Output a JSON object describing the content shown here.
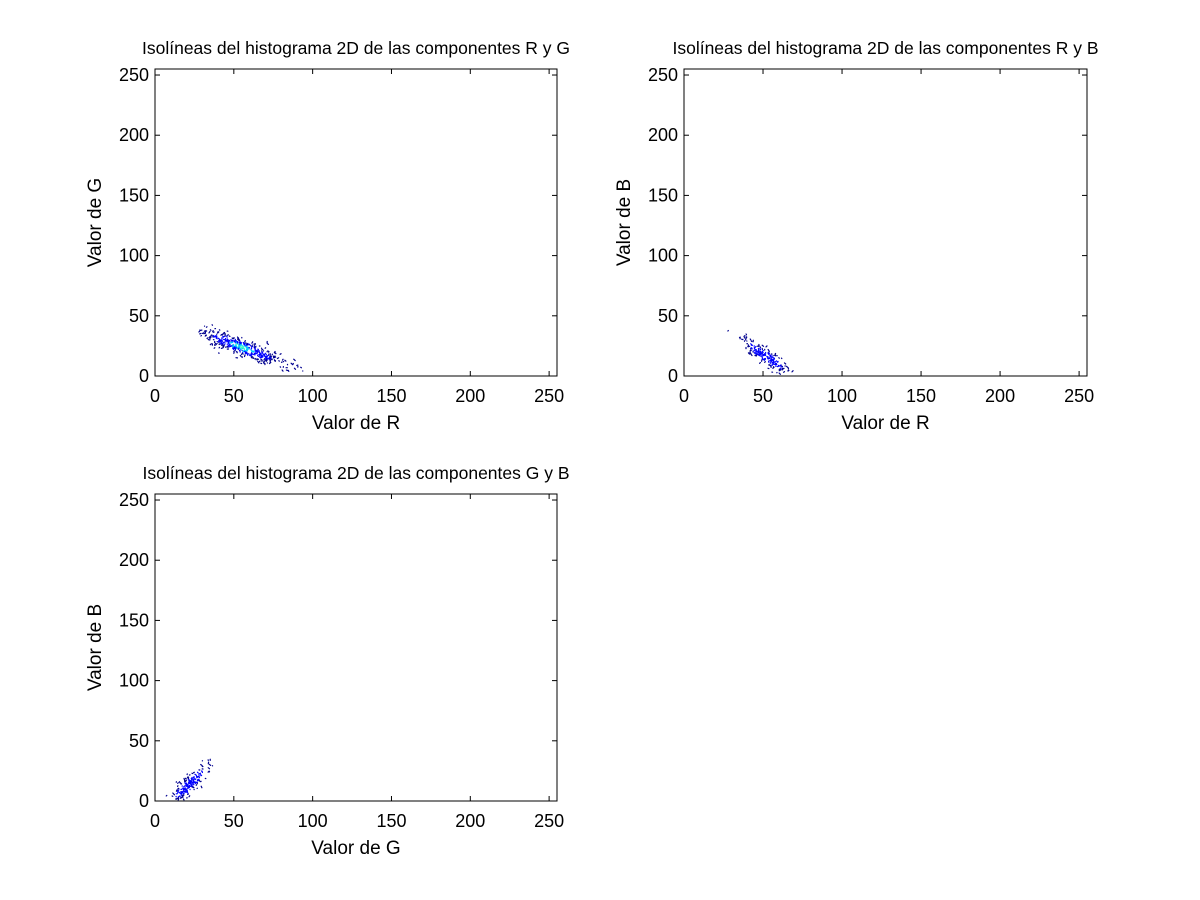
{
  "figure": {
    "background": "#ffffff"
  },
  "colors": {
    "axis": "#000000",
    "contour_low": "#00008f",
    "contour_mid": "#0000ff",
    "contour_high": "#00c8ff",
    "contour_peak": "#40ffbf"
  },
  "chart_data": [
    {
      "type": "contour",
      "title": "Isolíneas del histograma 2D de las componentes R y G",
      "xlabel": "Valor de R",
      "ylabel": "Valor de G",
      "xlim": [
        0,
        255
      ],
      "ylim": [
        0,
        255
      ],
      "xticks": [
        0,
        50,
        100,
        150,
        200,
        250
      ],
      "yticks": [
        0,
        50,
        100,
        150,
        200,
        250
      ],
      "grid": false,
      "cluster": {
        "center": [
          55,
          24
        ],
        "spread": [
          14,
          8
        ],
        "orientation": "negative",
        "x_range": [
          28,
          100
        ],
        "y_range": [
          2,
          48
        ],
        "density": "high"
      }
    },
    {
      "type": "contour",
      "title": "Isolíneas del histograma 2D de las componentes R y B",
      "xlabel": "Valor de R",
      "ylabel": "Valor de B",
      "xlim": [
        0,
        255
      ],
      "ylim": [
        0,
        255
      ],
      "xticks": [
        0,
        50,
        100,
        150,
        200,
        250
      ],
      "yticks": [
        0,
        50,
        100,
        150,
        200,
        250
      ],
      "grid": false,
      "cluster": {
        "center": [
          52,
          16
        ],
        "spread": [
          8,
          8
        ],
        "orientation": "negative",
        "x_range": [
          28,
          78
        ],
        "y_range": [
          0,
          42
        ],
        "density": "low"
      }
    },
    {
      "type": "contour",
      "title": "Isolíneas del histograma 2D de las componentes G y B",
      "xlabel": "Valor de G",
      "ylabel": "Valor de B",
      "xlim": [
        0,
        255
      ],
      "ylim": [
        0,
        255
      ],
      "xticks": [
        0,
        50,
        100,
        150,
        200,
        250
      ],
      "yticks": [
        0,
        50,
        100,
        150,
        200,
        250
      ],
      "grid": false,
      "cluster": {
        "center": [
          22,
          14
        ],
        "spread": [
          7,
          9
        ],
        "orientation": "positive",
        "x_range": [
          5,
          37
        ],
        "y_range": [
          0,
          38
        ],
        "density": "low"
      }
    }
  ]
}
